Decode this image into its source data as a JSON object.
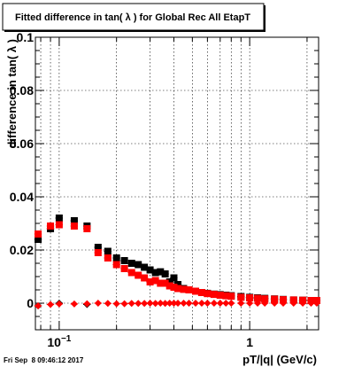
{
  "chart_data": {
    "type": "scatter",
    "title": "Fitted difference in tan( λ ) for Global Rec All EtapT",
    "xlabel": "pT/|q| (GeV/c)",
    "ylabel": "difference in tan( λ )",
    "xscale": "log",
    "xlim": [
      0.075,
      2.3
    ],
    "ylim": [
      -0.01,
      0.1
    ],
    "grid": true,
    "x_tick_labels": [
      {
        "value": 0.1,
        "label": "10",
        "exp": "−1"
      },
      {
        "value": 1,
        "label": "1",
        "exp": ""
      }
    ],
    "y_tick_labels": [
      {
        "value": 0,
        "label": "0"
      },
      {
        "value": 0.02,
        "label": "0.02"
      },
      {
        "value": 0.04,
        "label": "0.04"
      },
      {
        "value": 0.06,
        "label": "0.06"
      },
      {
        "value": 0.08,
        "label": "0.08"
      },
      {
        "value": 0.1,
        "label": "0.1"
      }
    ],
    "series": [
      {
        "color": "#000000",
        "marker": "square",
        "x": [
          0.0775,
          0.09,
          0.1,
          0.12,
          0.14,
          0.16,
          0.18,
          0.2,
          0.22,
          0.24,
          0.26,
          0.28,
          0.3,
          0.32,
          0.34,
          0.36,
          0.38,
          0.4,
          0.42,
          0.45,
          0.48,
          0.52,
          0.56,
          0.6,
          0.65,
          0.7,
          0.75,
          0.8,
          0.9,
          1.0,
          1.1,
          1.2,
          1.35,
          1.5,
          1.7,
          1.9,
          2.1,
          2.25
        ],
        "y": [
          0.024,
          0.028,
          0.032,
          0.031,
          0.029,
          0.021,
          0.0195,
          0.017,
          0.016,
          0.015,
          0.0145,
          0.0135,
          0.0125,
          0.0115,
          0.0118,
          0.011,
          0.008,
          0.0095,
          0.007,
          0.0055,
          0.005,
          0.0045,
          0.004,
          0.0037,
          0.0034,
          0.0032,
          0.003,
          0.0028,
          0.0025,
          0.0022,
          0.002,
          0.0018,
          0.0016,
          0.0014,
          0.0012,
          0.0011,
          0.001,
          0.001
        ]
      },
      {
        "color": "#ff0000",
        "marker": "square",
        "x": [
          0.0775,
          0.09,
          0.1,
          0.12,
          0.14,
          0.16,
          0.18,
          0.2,
          0.22,
          0.24,
          0.26,
          0.28,
          0.3,
          0.32,
          0.34,
          0.36,
          0.38,
          0.4,
          0.42,
          0.45,
          0.48,
          0.52,
          0.56,
          0.6,
          0.65,
          0.7,
          0.75,
          0.8,
          0.9,
          1.0,
          1.1,
          1.2,
          1.35,
          1.5,
          1.7,
          1.9,
          2.1,
          2.25
        ],
        "y": [
          0.026,
          0.029,
          0.0295,
          0.029,
          0.028,
          0.019,
          0.017,
          0.0145,
          0.013,
          0.0115,
          0.0105,
          0.0095,
          0.008,
          0.0085,
          0.0075,
          0.0075,
          0.0065,
          0.006,
          0.0055,
          0.0052,
          0.005,
          0.0045,
          0.004,
          0.0036,
          0.0033,
          0.003,
          0.0028,
          0.0026,
          0.0022,
          0.002,
          0.0018,
          0.0016,
          0.0015,
          0.0013,
          0.0012,
          0.0011,
          0.001,
          0.001
        ]
      },
      {
        "color": "#000000",
        "marker": "diamond",
        "x": [
          0.0775,
          0.1,
          0.14
        ],
        "y": [
          -0.001,
          0.0,
          -0.0005
        ]
      },
      {
        "color": "#ff0000",
        "marker": "diamond",
        "x": [
          0.0775,
          0.09,
          0.1,
          0.12,
          0.14,
          0.16,
          0.18,
          0.2,
          0.22,
          0.24,
          0.26,
          0.28,
          0.3,
          0.32,
          0.34,
          0.36,
          0.38,
          0.4,
          0.42,
          0.45,
          0.48,
          0.52,
          0.56,
          0.6,
          0.65,
          0.7,
          0.75,
          0.8,
          0.9,
          1.0,
          1.1,
          1.2,
          1.35,
          1.5,
          1.7,
          1.9,
          2.1,
          2.25
        ],
        "y": [
          -0.001,
          -0.0005,
          -0.0003,
          -0.0003,
          -0.0002,
          0.0,
          -0.0001,
          -0.0002,
          -0.0002,
          -0.0001,
          -0.0001,
          -0.0001,
          0.0,
          -0.0001,
          0.0,
          -0.0001,
          0.0,
          0.0,
          0.0,
          0.0,
          0.0,
          0.0,
          0.0,
          0.0,
          0.0,
          0.0,
          0.0,
          0.0,
          0.0,
          0.0,
          0.0,
          0.0,
          0.0,
          0.0,
          0.0,
          0.0,
          0.0,
          0.0
        ]
      }
    ]
  },
  "footer": {
    "timestamp": "Fri Sep  8 09:46:12 2017"
  }
}
